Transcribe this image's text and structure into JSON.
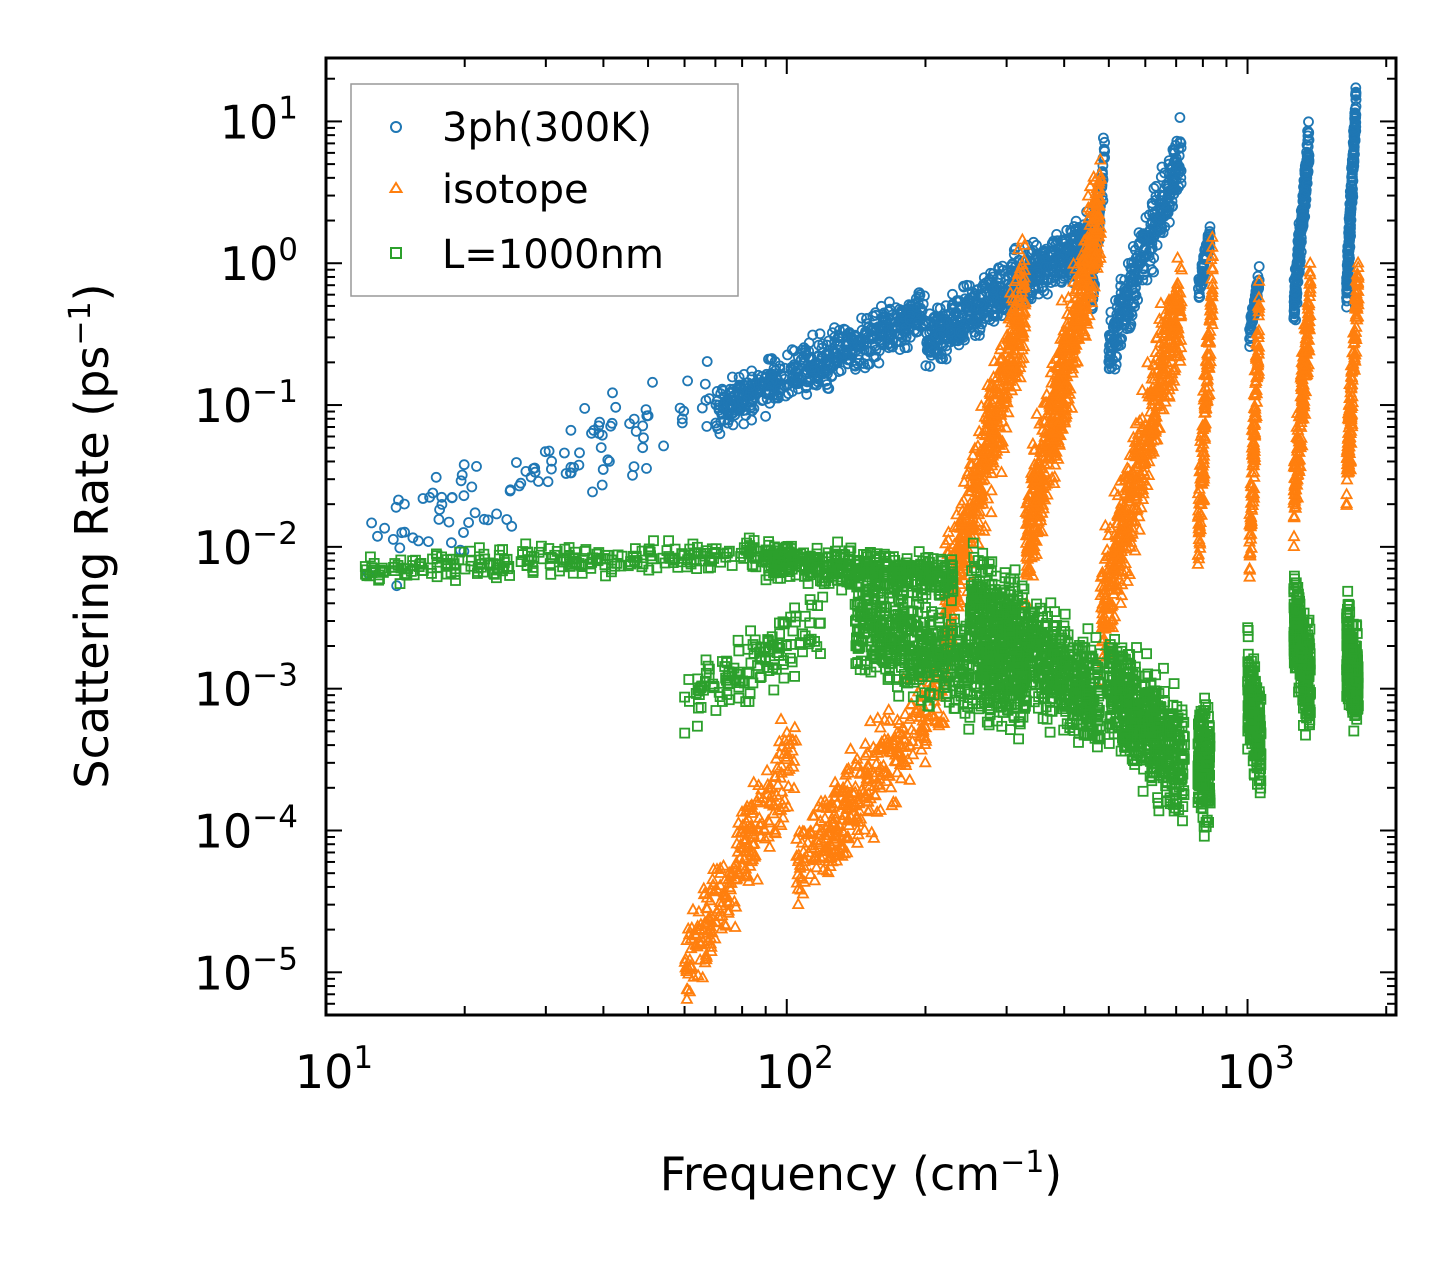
{
  "chart_data": {
    "type": "scatter",
    "xscale": "log",
    "yscale": "log",
    "xlim": [
      10,
      2100
    ],
    "ylim": [
      5e-06,
      28
    ],
    "xlabel": "Frequency (cm",
    "xlabel_sup": "−1",
    "xlabel_end": ")",
    "ylabel": "Scattering Rate (ps",
    "ylabel_sup": "−1",
    "ylabel_end": ")",
    "x_ticks": [
      {
        "value": 10,
        "base": "10",
        "exp": "1"
      },
      {
        "value": 100,
        "base": "10",
        "exp": "2"
      },
      {
        "value": 1000,
        "base": "10",
        "exp": "3"
      }
    ],
    "y_ticks": [
      {
        "value": 10,
        "base": "10",
        "exp": "1"
      },
      {
        "value": 1,
        "base": "10",
        "exp": "0"
      },
      {
        "value": 0.1,
        "base": "10",
        "exp": "−1"
      },
      {
        "value": 0.01,
        "base": "10",
        "exp": "−2"
      },
      {
        "value": 0.001,
        "base": "10",
        "exp": "−3"
      },
      {
        "value": 0.0001,
        "base": "10",
        "exp": "−4"
      },
      {
        "value": 1e-05,
        "base": "10",
        "exp": "−5"
      }
    ],
    "legend": {
      "position": "top-left",
      "entries": [
        "3ph(300K)",
        "isotope",
        "L=1000nm"
      ]
    },
    "series": [
      {
        "name": "3ph(300K)",
        "marker": "circle",
        "color": "#1f77b4",
        "clusters": [
          {
            "xmin": 12,
            "xmax": 70,
            "y0": 0.009,
            "y1": 0.12,
            "spread": 0.45,
            "n": 110
          },
          {
            "xmin": 70,
            "xmax": 200,
            "y0": 0.09,
            "y1": 0.45,
            "spread": 0.25,
            "n": 550
          },
          {
            "xmin": 200,
            "xmax": 470,
            "y0": 0.28,
            "y1": 1.6,
            "spread": 0.3,
            "n": 650
          },
          {
            "xmin": 460,
            "xmax": 490,
            "y0": 0.6,
            "y1": 6.5,
            "spread": 0.25,
            "n": 90
          },
          {
            "xmin": 500,
            "xmax": 720,
            "y0": 0.25,
            "y1": 6.0,
            "spread": 0.35,
            "n": 320
          },
          {
            "xmin": 780,
            "xmax": 830,
            "y0": 0.6,
            "y1": 1.6,
            "spread": 0.15,
            "n": 60
          },
          {
            "xmin": 1010,
            "xmax": 1060,
            "y0": 0.3,
            "y1": 0.8,
            "spread": 0.12,
            "n": 80
          },
          {
            "xmin": 1260,
            "xmax": 1360,
            "y0": 0.45,
            "y1": 7.0,
            "spread": 0.25,
            "n": 220
          },
          {
            "xmin": 1640,
            "xmax": 1720,
            "y0": 0.6,
            "y1": 14.0,
            "spread": 0.25,
            "n": 220
          }
        ]
      },
      {
        "name": "isotope",
        "marker": "triangle",
        "color": "#ff7f0e",
        "clusters": [
          {
            "xmin": 60,
            "xmax": 105,
            "y0": 1e-05,
            "y1": 0.0004,
            "spread": 0.5,
            "n": 260
          },
          {
            "xmin": 105,
            "xmax": 220,
            "y0": 5e-05,
            "y1": 0.001,
            "spread": 0.5,
            "n": 360
          },
          {
            "xmin": 220,
            "xmax": 330,
            "y0": 0.003,
            "y1": 0.6,
            "spread": 0.6,
            "n": 500
          },
          {
            "xmin": 330,
            "xmax": 480,
            "y0": 0.01,
            "y1": 2.5,
            "spread": 0.6,
            "n": 650
          },
          {
            "xmin": 480,
            "xmax": 720,
            "y0": 0.003,
            "y1": 0.6,
            "spread": 0.6,
            "n": 500
          },
          {
            "xmin": 780,
            "xmax": 840,
            "y0": 0.01,
            "y1": 0.8,
            "spread": 0.5,
            "n": 150
          },
          {
            "xmin": 1010,
            "xmax": 1060,
            "y0": 0.01,
            "y1": 0.4,
            "spread": 0.5,
            "n": 130
          },
          {
            "xmin": 1260,
            "xmax": 1370,
            "y0": 0.02,
            "y1": 0.6,
            "spread": 0.45,
            "n": 180
          },
          {
            "xmin": 1640,
            "xmax": 1740,
            "y0": 0.03,
            "y1": 0.8,
            "spread": 0.45,
            "n": 160
          }
        ]
      },
      {
        "name": "L=1000nm",
        "marker": "square",
        "color": "#2ca02c",
        "clusters": [
          {
            "xmin": 12,
            "xmax": 90,
            "y0": 0.007,
            "y1": 0.009,
            "spread": 0.15,
            "n": 260
          },
          {
            "xmin": 60,
            "xmax": 120,
            "y0": 0.0008,
            "y1": 0.003,
            "spread": 0.35,
            "n": 140
          },
          {
            "xmin": 90,
            "xmax": 230,
            "y0": 0.008,
            "y1": 0.006,
            "spread": 0.2,
            "n": 420
          },
          {
            "xmin": 140,
            "xmax": 330,
            "y0": 0.003,
            "y1": 0.001,
            "spread": 0.5,
            "n": 650
          },
          {
            "xmin": 250,
            "xmax": 480,
            "y0": 0.004,
            "y1": 0.0008,
            "spread": 0.55,
            "n": 750
          },
          {
            "xmin": 500,
            "xmax": 730,
            "y0": 0.001,
            "y1": 0.0003,
            "spread": 0.6,
            "n": 550
          },
          {
            "xmin": 780,
            "xmax": 830,
            "y0": 0.0003,
            "y1": 0.0003,
            "spread": 0.6,
            "n": 180
          },
          {
            "xmin": 1000,
            "xmax": 1070,
            "y0": 0.001,
            "y1": 0.0004,
            "spread": 0.5,
            "n": 220
          },
          {
            "xmin": 1260,
            "xmax": 1370,
            "y0": 0.003,
            "y1": 0.001,
            "spread": 0.5,
            "n": 280
          },
          {
            "xmin": 1640,
            "xmax": 1740,
            "y0": 0.002,
            "y1": 0.001,
            "spread": 0.5,
            "n": 250
          }
        ]
      }
    ]
  }
}
